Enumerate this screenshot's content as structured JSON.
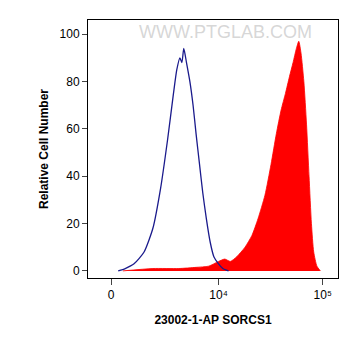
{
  "chart_data": {
    "type": "line",
    "xlabel": "23002-1-AP SORCS1",
    "ylabel": "Relative Cell Number",
    "annotations": [
      {
        "text": "WWW.PTGLAB.COM"
      }
    ],
    "xlim": [
      -1000,
      140000
    ],
    "xticks": [
      0,
      {
        "value": 10000,
        "label": "10⁴"
      },
      {
        "value": 100000,
        "label": "10⁵"
      }
    ],
    "ylim": [
      -3,
      106
    ],
    "yticks": [
      0,
      20,
      40,
      60,
      80,
      100
    ],
    "grid": false,
    "series": [
      {
        "type": "line",
        "color": "#1a1a8c",
        "x": [
          300,
          600,
          1000,
          1500,
          2000,
          2500,
          3000,
          3500,
          3800,
          4100,
          4300,
          4500,
          4800,
          5200,
          5600,
          6000,
          6500,
          7000,
          7600,
          8300,
          9000,
          10000,
          11000,
          12500
        ],
        "values": [
          0,
          1,
          3,
          8,
          18,
          35,
          55,
          75,
          85,
          90,
          88,
          94,
          88,
          80,
          70,
          58,
          45,
          33,
          22,
          12,
          6,
          3,
          1,
          0
        ]
      },
      {
        "type": "area",
        "color": "#ff0000",
        "x": [
          500,
          2000,
          4000,
          6000,
          8000,
          10000,
          11500,
          13000,
          15000,
          18000,
          21000,
          24000,
          28000,
          32000,
          36000,
          40000,
          44000,
          48000,
          52000,
          56000,
          59000,
          62000,
          66000,
          70000,
          74000,
          78000,
          82000,
          88000,
          95000
        ],
        "values": [
          0,
          1,
          1,
          1.5,
          2,
          4,
          5,
          4,
          6,
          10,
          15,
          22,
          32,
          45,
          58,
          68,
          75,
          82,
          88,
          94,
          97,
          92,
          80,
          62,
          40,
          20,
          8,
          2,
          0
        ]
      }
    ]
  }
}
